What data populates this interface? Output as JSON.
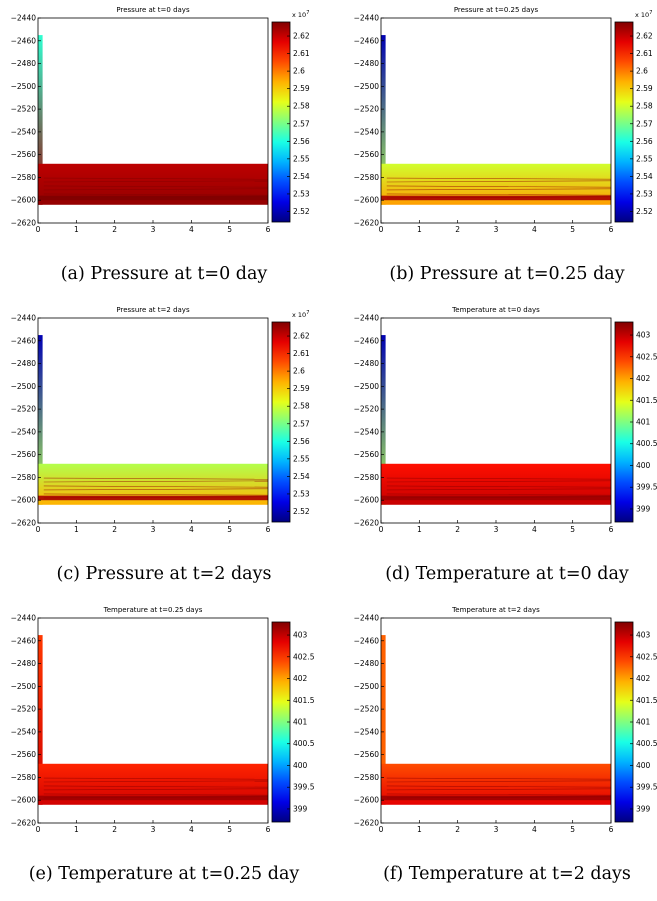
{
  "chart_data": [
    {
      "id": "a",
      "type": "heatmap",
      "title": "Pressure at t=0 days",
      "caption": "(a)  Pressure at t=0 day",
      "xlim": [
        0,
        6
      ],
      "ylim": [
        -2620,
        -2440
      ],
      "xticks": [
        0,
        1,
        2,
        3,
        4,
        5,
        6
      ],
      "yticks": [
        -2620,
        -2600,
        -2580,
        -2560,
        -2540,
        -2520,
        -2500,
        -2480,
        -2460,
        -2440
      ],
      "colorbar": {
        "min": 2.514,
        "max": 2.628,
        "ticks": [
          2.52,
          2.53,
          2.54,
          2.55,
          2.56,
          2.57,
          2.58,
          2.59,
          2.6,
          2.61,
          2.62
        ],
        "exponent": "x 10^7",
        "colormap": "jet"
      },
      "regions": {
        "well_top": {
          "x": [
            0,
            0.12
          ],
          "y": [
            -2604,
            -2455
          ],
          "c0": 0.42,
          "c1": 0.97
        },
        "reservoir": {
          "x": [
            0,
            6
          ],
          "y": [
            -2604,
            -2568
          ],
          "c0": 0.94,
          "c1": 0.98,
          "band_c": 1.0
        }
      }
    },
    {
      "id": "b",
      "type": "heatmap",
      "title": "Pressure at t=0.25 days",
      "caption": "(b)  Pressure at t=0.25 day",
      "xlim": [
        0,
        6
      ],
      "ylim": [
        -2620,
        -2440
      ],
      "xticks": [
        0,
        1,
        2,
        3,
        4,
        5,
        6
      ],
      "yticks": [
        -2620,
        -2600,
        -2580,
        -2560,
        -2540,
        -2520,
        -2500,
        -2480,
        -2460,
        -2440
      ],
      "colorbar": {
        "min": 2.514,
        "max": 2.628,
        "ticks": [
          2.52,
          2.53,
          2.54,
          2.55,
          2.56,
          2.57,
          2.58,
          2.59,
          2.6,
          2.61,
          2.62
        ],
        "exponent": "x 10^7",
        "colormap": "jet"
      },
      "regions": {
        "well_top": {
          "x": [
            0,
            0.12
          ],
          "y": [
            -2604,
            -2455
          ],
          "c0": 0.05,
          "c1": 0.55
        },
        "reservoir": {
          "x": [
            0,
            6
          ],
          "y": [
            -2604,
            -2568
          ],
          "c0": 0.58,
          "c1": 0.72,
          "band_c": 0.96
        }
      }
    },
    {
      "id": "c",
      "type": "heatmap",
      "title": "Pressure at t=2 days",
      "caption": "(c)  Pressure at t=2 days",
      "xlim": [
        0,
        6
      ],
      "ylim": [
        -2620,
        -2440
      ],
      "xticks": [
        0,
        1,
        2,
        3,
        4,
        5,
        6
      ],
      "yticks": [
        -2620,
        -2600,
        -2580,
        -2560,
        -2540,
        -2520,
        -2500,
        -2480,
        -2460,
        -2440
      ],
      "colorbar": {
        "min": 2.514,
        "max": 2.628,
        "ticks": [
          2.52,
          2.53,
          2.54,
          2.55,
          2.56,
          2.57,
          2.58,
          2.59,
          2.6,
          2.61,
          2.62
        ],
        "exponent": "x 10^7",
        "colormap": "jet"
      },
      "regions": {
        "well_top": {
          "x": [
            0,
            0.12
          ],
          "y": [
            -2604,
            -2455
          ],
          "c0": 0.05,
          "c1": 0.55
        },
        "reservoir": {
          "x": [
            0,
            6
          ],
          "y": [
            -2604,
            -2568
          ],
          "c0": 0.55,
          "c1": 0.7,
          "band_c": 0.96
        }
      }
    },
    {
      "id": "d",
      "type": "heatmap",
      "title": "Temperature at t=0 days",
      "caption": "(d)  Temperature at t=0 day",
      "xlim": [
        0,
        6
      ],
      "ylim": [
        -2620,
        -2440
      ],
      "xticks": [
        0,
        1,
        2,
        3,
        4,
        5,
        6
      ],
      "yticks": [
        -2620,
        -2600,
        -2580,
        -2560,
        -2540,
        -2520,
        -2500,
        -2480,
        -2460,
        -2440
      ],
      "colorbar": {
        "min": 398.7,
        "max": 403.3,
        "ticks": [
          399,
          399.5,
          400,
          400.5,
          401,
          401.5,
          402,
          402.5,
          403
        ],
        "exponent": "",
        "colormap": "jet"
      },
      "regions": {
        "well_top": {
          "x": [
            0,
            0.12
          ],
          "y": [
            -2604,
            -2455
          ],
          "c0": 0.05,
          "c1": 0.55
        },
        "reservoir": {
          "x": [
            0,
            6
          ],
          "y": [
            -2604,
            -2568
          ],
          "c0": 0.86,
          "c1": 0.93,
          "band_c": 0.97
        }
      }
    },
    {
      "id": "e",
      "type": "heatmap",
      "title": "Temperature at t=0.25 days",
      "caption": "(e)  Temperature at t=0.25 day",
      "xlim": [
        0,
        6
      ],
      "ylim": [
        -2620,
        -2440
      ],
      "xticks": [
        0,
        1,
        2,
        3,
        4,
        5,
        6
      ],
      "yticks": [
        -2620,
        -2600,
        -2580,
        -2560,
        -2540,
        -2520,
        -2500,
        -2480,
        -2460,
        -2440
      ],
      "colorbar": {
        "min": 398.7,
        "max": 403.3,
        "ticks": [
          399,
          399.5,
          400,
          400.5,
          401,
          401.5,
          402,
          402.5,
          403
        ],
        "exponent": "",
        "colormap": "jet"
      },
      "regions": {
        "well_top": {
          "x": [
            0,
            0.12
          ],
          "y": [
            -2604,
            -2455
          ],
          "c0": 0.82,
          "c1": 0.92
        },
        "reservoir": {
          "x": [
            0,
            6
          ],
          "y": [
            -2604,
            -2568
          ],
          "c0": 0.84,
          "c1": 0.92,
          "band_c": 0.97
        }
      }
    },
    {
      "id": "f",
      "type": "heatmap",
      "title": "Temperature at t=2 days",
      "caption": "(f)  Temperature at t=2 days",
      "xlim": [
        0,
        6
      ],
      "ylim": [
        -2620,
        -2440
      ],
      "xticks": [
        0,
        1,
        2,
        3,
        4,
        5,
        6
      ],
      "yticks": [
        -2620,
        -2600,
        -2580,
        -2560,
        -2540,
        -2520,
        -2500,
        -2480,
        -2460,
        -2440
      ],
      "colorbar": {
        "min": 398.7,
        "max": 403.3,
        "ticks": [
          399,
          399.5,
          400,
          400.5,
          401,
          401.5,
          402,
          402.5,
          403
        ],
        "exponent": "",
        "colormap": "jet"
      },
      "regions": {
        "well_top": {
          "x": [
            0,
            0.12
          ],
          "y": [
            -2604,
            -2455
          ],
          "c0": 0.78,
          "c1": 0.78
        },
        "reservoir": {
          "x": [
            0,
            6
          ],
          "y": [
            -2604,
            -2568
          ],
          "c0": 0.8,
          "c1": 0.9,
          "band_c": 0.97
        }
      }
    }
  ]
}
